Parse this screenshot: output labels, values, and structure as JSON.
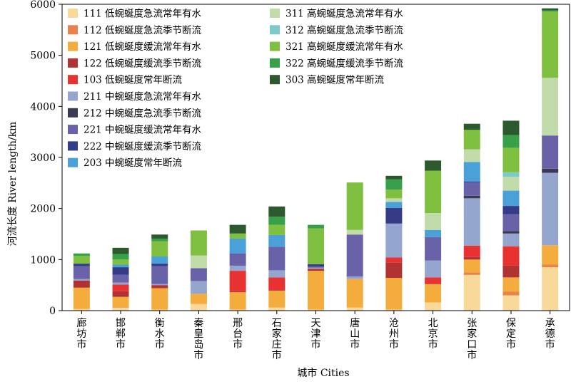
{
  "chart_data": {
    "type": "bar",
    "stacked": true,
    "xlabel": "城市 Cities",
    "ylabel": "河流长度 River length/km",
    "ylim": [
      0,
      6000
    ],
    "yticks": [
      0,
      1000,
      2000,
      3000,
      4000,
      5000,
      6000
    ],
    "grid": false,
    "legend_position": "top-left",
    "categories": [
      "廊坊市",
      "邯郸市",
      "衡水市",
      "秦皇岛市",
      "邢台市",
      "石家庄市",
      "天津市",
      "唐山市",
      "沧州市",
      "北京市",
      "张家口市",
      "保定市",
      "承德市"
    ],
    "series": [
      {
        "name": "111 低蜿蜒度急流常年有水",
        "color": "#f9d99a",
        "values": [
          30,
          60,
          20,
          130,
          20,
          60,
          20,
          60,
          20,
          160,
          700,
          300,
          850
        ]
      },
      {
        "name": "112 低蜿蜒度急流季节断流",
        "color": "#e8824a",
        "values": [
          0,
          10,
          0,
          0,
          0,
          0,
          0,
          0,
          0,
          0,
          50,
          70,
          50
        ]
      },
      {
        "name": "121 低蜿蜒度缓流常年有水",
        "color": "#f4ad3d",
        "values": [
          420,
          200,
          420,
          200,
          340,
          330,
          760,
          560,
          620,
          360,
          250,
          280,
          380
        ]
      },
      {
        "name": "122 低蜿蜒度缓流季节断流",
        "color": "#b03232",
        "values": [
          140,
          110,
          60,
          0,
          20,
          10,
          40,
          0,
          300,
          10,
          50,
          230,
          0
        ]
      },
      {
        "name": "103 低蜿蜒度常年断流",
        "color": "#e83232",
        "values": [
          0,
          130,
          0,
          0,
          400,
          250,
          0,
          0,
          100,
          120,
          220,
          380,
          0
        ]
      },
      {
        "name": "211 中蜿蜒度急流常年有水",
        "color": "#94a6ce",
        "values": [
          30,
          40,
          20,
          250,
          100,
          140,
          20,
          50,
          660,
          330,
          930,
          250,
          1420
        ]
      },
      {
        "name": "212 中蜿蜒度急流季节断流",
        "color": "#3a3a55",
        "values": [
          0,
          0,
          0,
          0,
          0,
          0,
          0,
          0,
          0,
          0,
          50,
          50,
          80
        ]
      },
      {
        "name": "221 中蜿蜒度缓流常年有水",
        "color": "#6a62a8",
        "values": [
          250,
          150,
          350,
          250,
          230,
          460,
          20,
          820,
          10,
          460,
          260,
          330,
          650
        ]
      },
      {
        "name": "222 中蜿蜒度缓流季节断流",
        "color": "#343c88",
        "values": [
          50,
          150,
          50,
          0,
          10,
          0,
          50,
          0,
          300,
          0,
          20,
          160,
          0
        ]
      },
      {
        "name": "203 中蜿蜒度常年断流",
        "color": "#4aa0d8",
        "values": [
          0,
          50,
          140,
          0,
          290,
          230,
          0,
          0,
          120,
          140,
          380,
          300,
          0
        ]
      },
      {
        "name": "311 高蜿蜒度急流常年有水",
        "color": "#c2dbaa",
        "values": [
          0,
          0,
          0,
          250,
          0,
          0,
          0,
          90,
          70,
          330,
          250,
          270,
          1130
        ]
      },
      {
        "name": "312 高蜿蜒度急流季节断流",
        "color": "#7ccbc6",
        "values": [
          0,
          0,
          0,
          0,
          0,
          0,
          0,
          0,
          0,
          0,
          0,
          90,
          0
        ]
      },
      {
        "name": "321 高蜿蜒度缓流常年有水",
        "color": "#80c040",
        "values": [
          150,
          100,
          300,
          490,
          100,
          200,
          700,
          930,
          170,
          830,
          380,
          480,
          1300
        ]
      },
      {
        "name": "322 高蜿蜒度缓流季节断流",
        "color": "#38a048",
        "values": [
          50,
          110,
          50,
          0,
          0,
          160,
          70,
          0,
          200,
          0,
          0,
          250,
          20
        ]
      },
      {
        "name": "303 高蜿蜒度常年断流",
        "color": "#2c5a2e",
        "values": [
          0,
          120,
          80,
          0,
          170,
          200,
          0,
          0,
          70,
          200,
          120,
          280,
          40
        ]
      }
    ]
  }
}
